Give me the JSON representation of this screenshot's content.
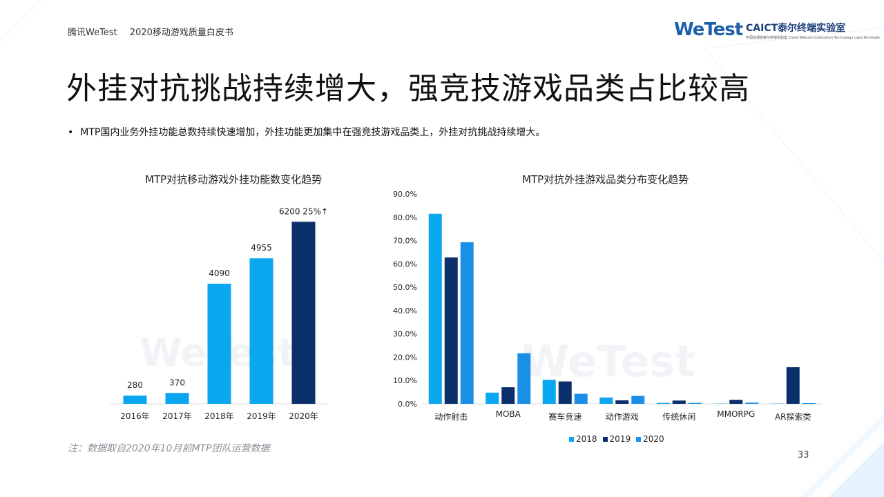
{
  "header": {
    "brand": "腾讯WeTest",
    "doc_title": "2020移动游戏质量白皮书",
    "logo_wetest": "WeTest",
    "logo_caict": "CAICT泰尔终端实验室",
    "logo_caict_sub": "中国信通院泰尔终端实验室 China Telecommunication Technology Labs Terminals"
  },
  "title": "外挂对抗挑战持续增大，强竞技游戏品类占比较高",
  "bullet_text": "MTP国内业务外挂功能总数持续快速增加，外挂功能更加集中在强竞技游戏品类上，外挂对抗挑战持续增大。",
  "note": "注：数据取自2020年10月前MTP团队运营数据",
  "page_number": "33",
  "watermark": "WeTest",
  "colors": {
    "bright": "#0aa6f0",
    "navy": "#0b2f6b",
    "blue": "#1a8fe8",
    "accent": "#1d5fa8"
  },
  "chart_data": [
    {
      "type": "bar",
      "title": "MTP对抗移动游戏外挂功能数变化趋势",
      "categories": [
        "2016年",
        "2017年",
        "2018年",
        "2019年",
        "2020年"
      ],
      "values": [
        280,
        370,
        4090,
        4955,
        6200
      ],
      "data_labels": [
        "280",
        "370",
        "4090",
        "4955",
        "6200 25%↑"
      ],
      "highlight_last": true,
      "ylim": [
        0,
        6700
      ]
    },
    {
      "type": "bar",
      "title": "MTP对抗外挂游戏品类分布变化趋势",
      "categories": [
        "动作射击",
        "MOBA",
        "赛车竞速",
        "动作游戏",
        "传统休闲",
        "MMORPG",
        "AR探索类"
      ],
      "series": [
        {
          "name": "2018",
          "values": [
            81.5,
            4.8,
            10.3,
            2.7,
            0.4,
            0.1,
            0.1
          ]
        },
        {
          "name": "2019",
          "values": [
            62.8,
            7.1,
            9.6,
            1.5,
            1.4,
            1.7,
            15.7
          ]
        },
        {
          "name": "2020",
          "values": [
            69.3,
            21.7,
            4.3,
            3.4,
            0.4,
            0.5,
            0.3
          ]
        }
      ],
      "yticks": [
        "90.0%",
        "80.0%",
        "70.0%",
        "60.0%",
        "50.0%",
        "40.0%",
        "30.0%",
        "20.0%",
        "10.0%",
        "0.0%"
      ],
      "ylim": [
        0,
        90
      ],
      "legend": "bottom"
    }
  ]
}
